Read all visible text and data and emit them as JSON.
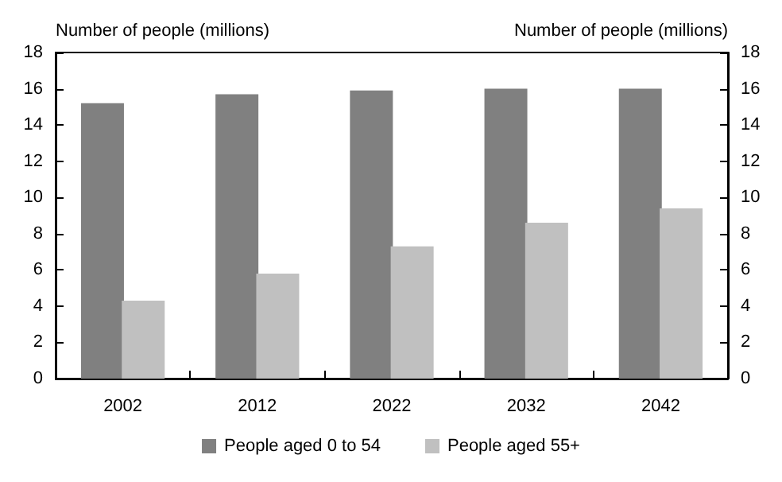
{
  "chart_data": {
    "type": "bar",
    "ylabel": "Number of people (millions)",
    "y2label": "Number of people (millions)",
    "categories": [
      "2002",
      "2012",
      "2022",
      "2032",
      "2042"
    ],
    "series": [
      {
        "name": "People aged 0 to 54",
        "color": "#808080",
        "values": [
          15.2,
          15.7,
          15.9,
          16.0,
          16.0
        ]
      },
      {
        "name": "People aged 55+",
        "color": "#c0c0c0",
        "values": [
          4.3,
          5.8,
          7.3,
          8.6,
          9.4
        ]
      }
    ],
    "ylim": [
      0,
      18
    ],
    "yticks": [
      0,
      2,
      4,
      6,
      8,
      10,
      12,
      14,
      16,
      18
    ],
    "y2lim": [
      0,
      18
    ],
    "y2ticks": [
      0,
      2,
      4,
      6,
      8,
      10,
      12,
      14,
      16,
      18
    ],
    "grid": false,
    "legend": "bottom"
  }
}
